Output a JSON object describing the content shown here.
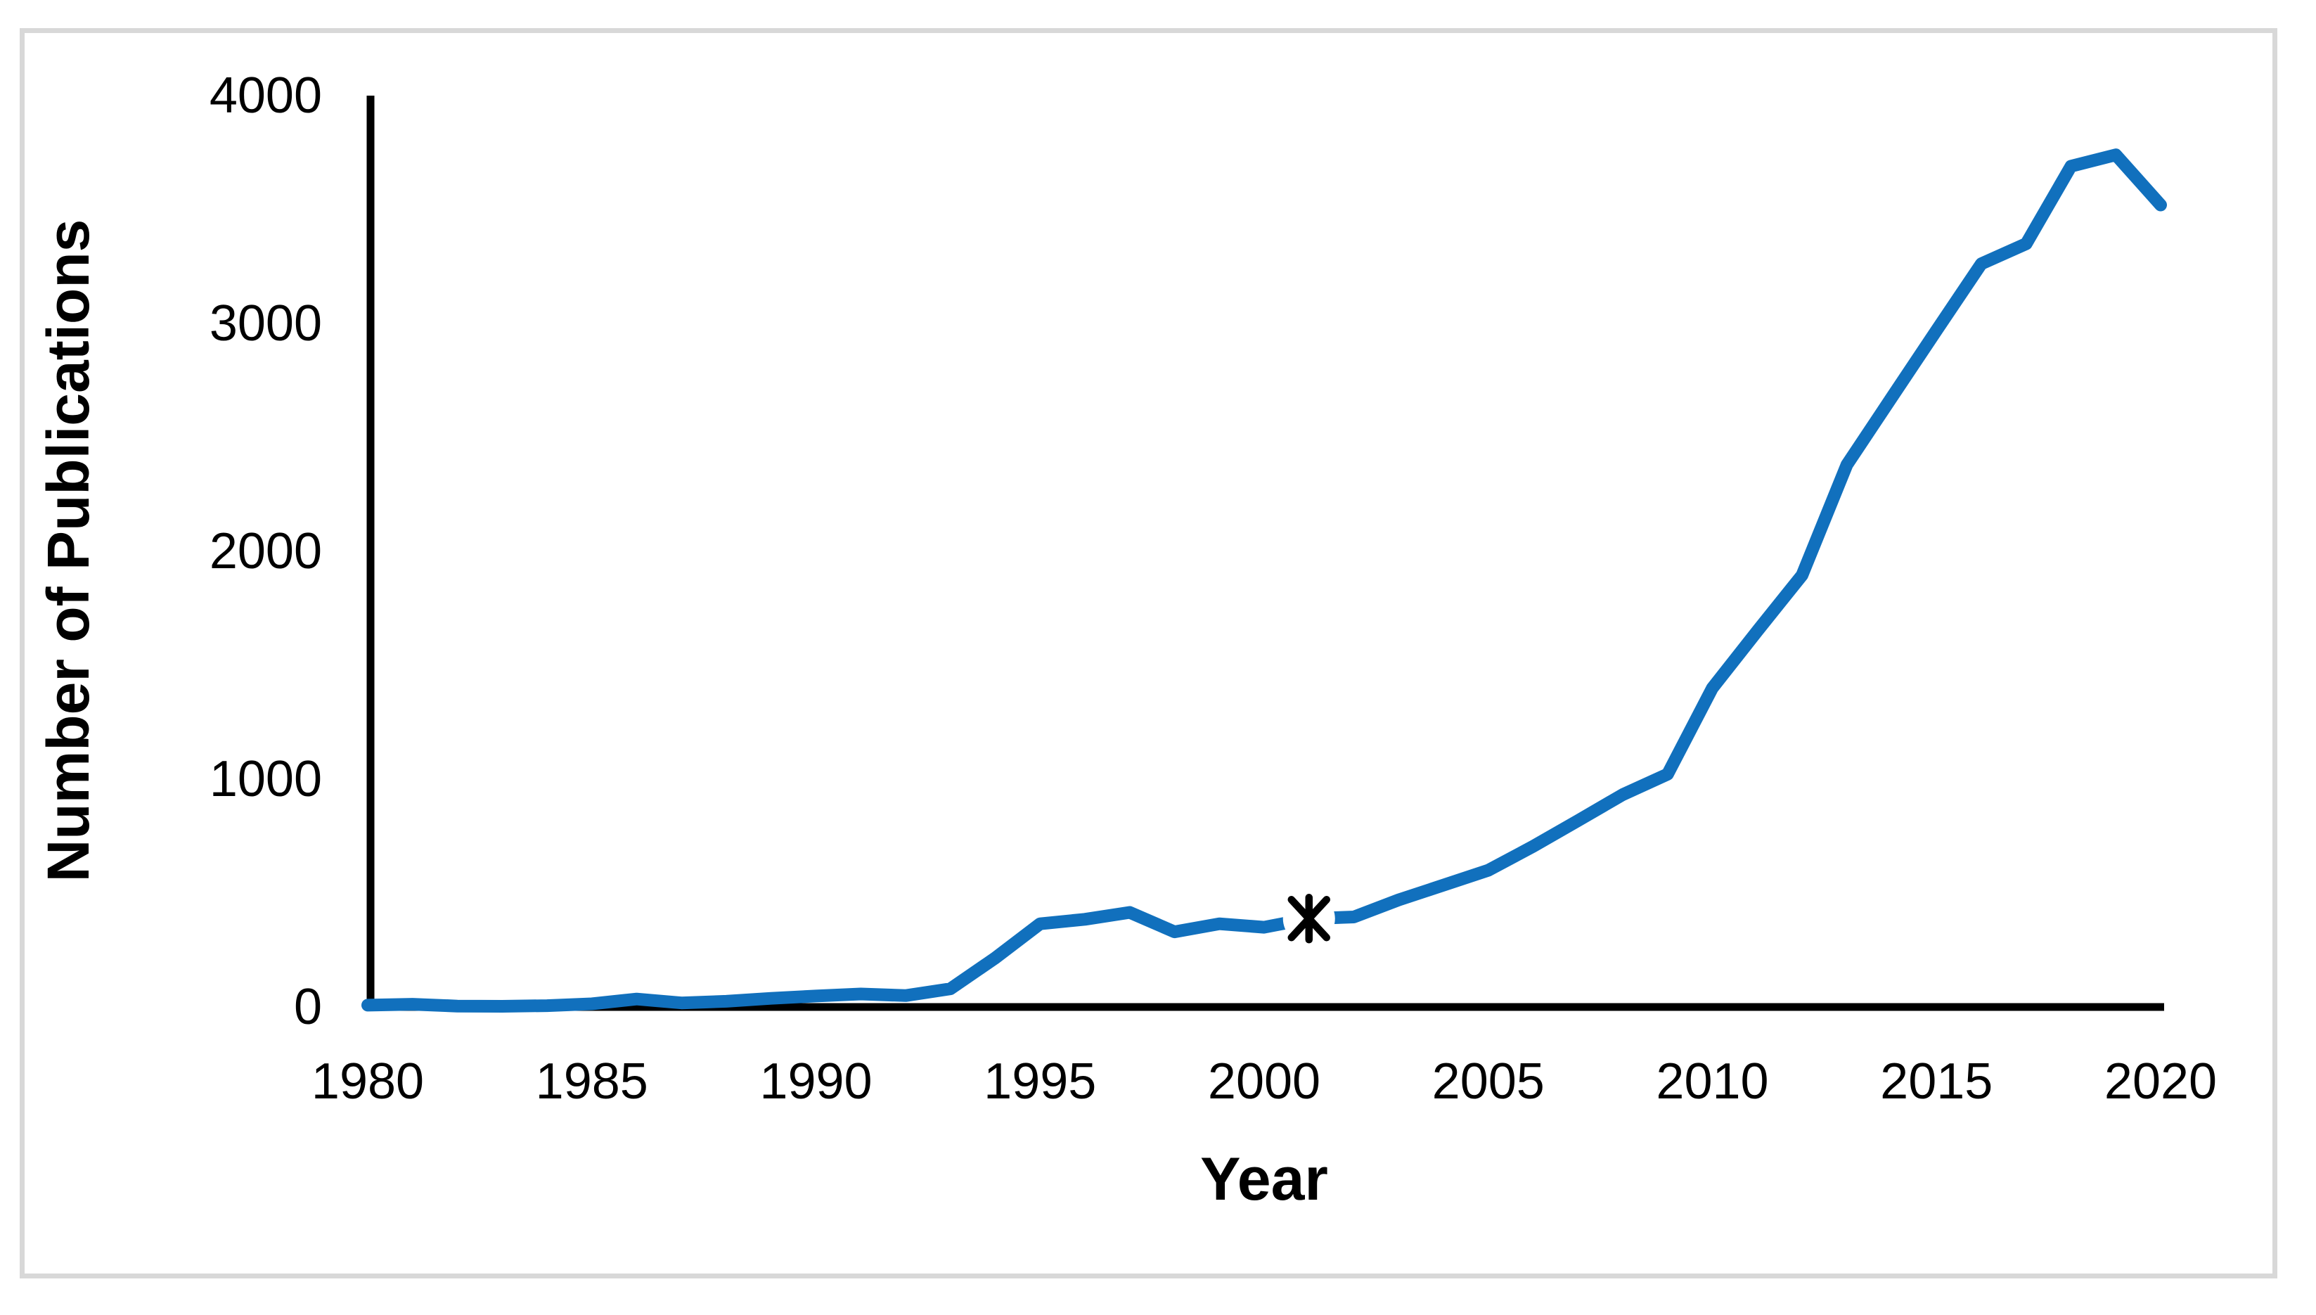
{
  "chart_data": {
    "type": "line",
    "title": "",
    "xlabel": "Year",
    "ylabel": "Number of Publications",
    "x": [
      1980,
      1981,
      1982,
      1983,
      1984,
      1985,
      1986,
      1987,
      1988,
      1989,
      1990,
      1991,
      1992,
      1993,
      1994,
      1995,
      1996,
      1997,
      1998,
      1999,
      2000,
      2001,
      2002,
      2003,
      2004,
      2005,
      2006,
      2007,
      2008,
      2009,
      2010,
      2011,
      2012,
      2013,
      2014,
      2015,
      2016,
      2017,
      2018,
      2019,
      2020
    ],
    "series": [
      {
        "name": "Number of Publications",
        "values": [
          8,
          12,
          4,
          3,
          6,
          14,
          35,
          18,
          25,
          38,
          48,
          57,
          50,
          80,
          215,
          365,
          385,
          415,
          330,
          365,
          350,
          388,
          395,
          470,
          535,
          600,
          705,
          818,
          932,
          1022,
          1400,
          1650,
          1895,
          2380,
          2675,
          2970,
          3262,
          3350,
          3690,
          3740,
          3520
        ]
      }
    ],
    "xlim": [
      1980,
      2020
    ],
    "ylim": [
      0,
      4000
    ],
    "xtick_labels": [
      "1980",
      "1985",
      "1990",
      "1995",
      "2000",
      "2005",
      "2010",
      "2015",
      "2020"
    ],
    "ytick_labels": [
      "0",
      "1000",
      "2000",
      "3000",
      "4000"
    ],
    "xticks": [
      1980,
      1985,
      1990,
      1995,
      2000,
      2005,
      2010,
      2015,
      2020
    ],
    "yticks": [
      0,
      1000,
      2000,
      3000,
      4000
    ],
    "grid": false,
    "legend": "none",
    "annotation": {
      "marker": "asterisk",
      "year": 2001,
      "value": 388,
      "line_gap_around_marker": true
    },
    "colors": {
      "line": "#1170BD",
      "axis": "#000000",
      "text": "#000000",
      "frame_border": "#D8D8D8",
      "background": "#FFFFFF"
    }
  }
}
